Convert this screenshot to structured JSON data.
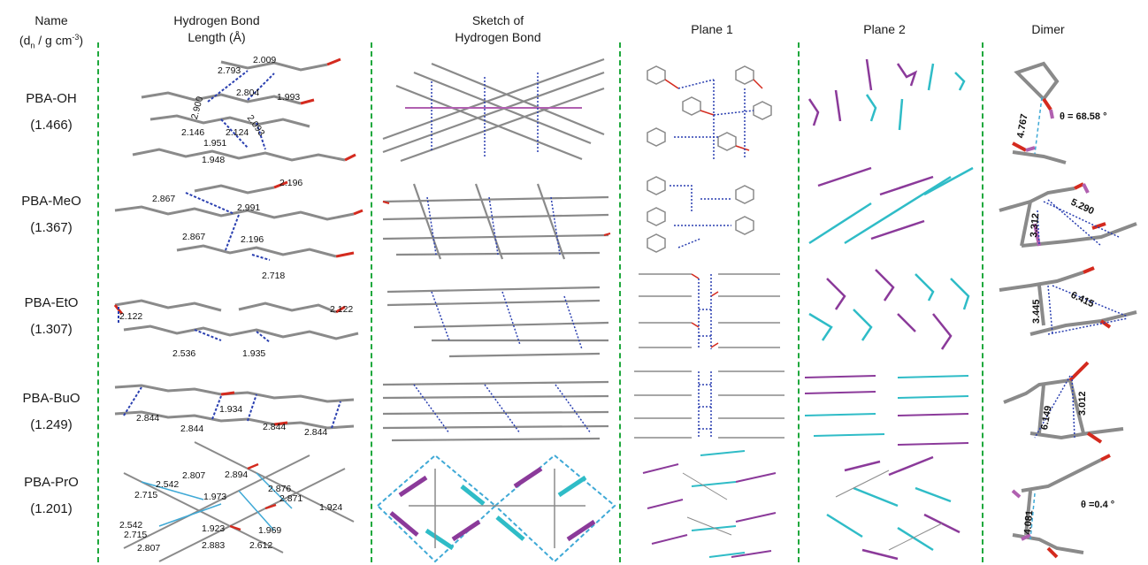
{
  "headers": {
    "name": "Name",
    "name_unit": "(dn / g cm-3)",
    "hbond_length_1": "Hydrogen Bond",
    "hbond_length_2": "Length (Å)",
    "sketch_1": "Sketch of",
    "sketch_2": "Hydrogen Bond",
    "plane1": "Plane 1",
    "plane2": "Plane 2",
    "dimer": "Dimer"
  },
  "rows": [
    {
      "name": "PBA-OH",
      "density": "(1.466)",
      "hbond_labels": [
        "2.009",
        "2.793",
        "2.804",
        "1.993",
        "2.900",
        "2.093",
        "2.146",
        "2.124",
        "1.951",
        "1.948"
      ],
      "dimer_labels": [
        "4.767",
        "θ = 68.58 °"
      ]
    },
    {
      "name": "PBA-MeO",
      "density": "(1.367)",
      "hbond_labels": [
        "2.196",
        "2.867",
        "2.991",
        "2.867",
        "2.196",
        "2.718"
      ],
      "dimer_labels": [
        "3.312",
        "5.290"
      ]
    },
    {
      "name": "PBA-EtO",
      "density": "(1.307)",
      "hbond_labels": [
        "2.122",
        "2.122",
        "2.536",
        "1.935"
      ],
      "dimer_labels": [
        "3.445",
        "6.415"
      ]
    },
    {
      "name": "PBA-BuO",
      "density": "(1.249)",
      "hbond_labels": [
        "2.844",
        "1.934",
        "2.844",
        "2.844",
        "2.844"
      ],
      "dimer_labels": [
        "6.149",
        "3.012"
      ]
    },
    {
      "name": "PBA-PrO",
      "density": "(1.201)",
      "hbond_labels": [
        "2.807",
        "2.894",
        "2.542",
        "2.876",
        "2.715",
        "1.973",
        "2.871",
        "1.924",
        "2.542",
        "1.923",
        "1.969",
        "2.715",
        "2.807",
        "2.883",
        "2.612"
      ],
      "dimer_labels": [
        "4.081",
        "θ =0.4 °"
      ]
    }
  ],
  "colors": {
    "divider": "#1fa83d",
    "carbon": "#8a8a8a",
    "oxygen": "#d42a1e",
    "boron": "#b060b0",
    "hbond": "#2a3fb0",
    "magenta_molecule": "#8b3a9a",
    "cyan_molecule": "#2fbcc7",
    "box": "#3fa9d6"
  }
}
